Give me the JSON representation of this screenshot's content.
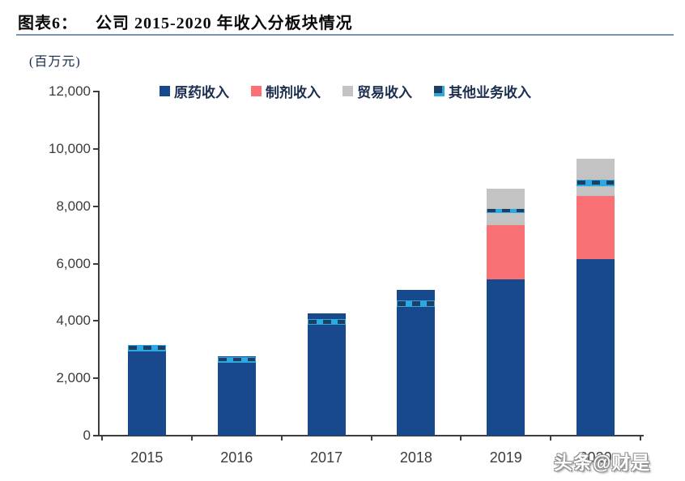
{
  "header": {
    "figure_label": "图表6：",
    "title": "公司 2015-2020 年收入分板块情况"
  },
  "watermark": "头条@财是",
  "chart_data": {
    "type": "bar",
    "stacked": true,
    "title": "公司 2015-2020 年收入分板块情况",
    "unit_label": "(百万元)",
    "xlabel": "",
    "ylabel": "百万元",
    "categories": [
      "2015",
      "2016",
      "2017",
      "2018",
      "2019",
      "2020"
    ],
    "series": [
      {
        "name": "原药收入",
        "color": "#17498c",
        "pattern": "solid",
        "values": [
          2950,
          2760,
          4250,
          5080,
          5450,
          6150
        ]
      },
      {
        "name": "制剂收入",
        "color": "#fa7175",
        "pattern": "solid",
        "values": [
          0,
          0,
          0,
          0,
          1900,
          2200
        ]
      },
      {
        "name": "贸易收入",
        "color": "#c3c3c3",
        "pattern": "solid",
        "values": [
          0,
          0,
          0,
          0,
          1250,
          1320
        ]
      },
      {
        "name": "其他业务收入",
        "color": "#2ba9e0",
        "pattern": "dashed",
        "values": [
          210,
          180,
          210,
          230,
          140,
          230
        ]
      }
    ],
    "ylim": [
      0,
      12000
    ],
    "ytick_step": 2000,
    "ytick_labels": [
      "0",
      "2,000",
      "4,000",
      "6,000",
      "8,000",
      "10,000",
      "12,000"
    ],
    "legend_position": "top",
    "grid": false,
    "colors": {
      "axis": "#3d3d3d",
      "title_underline": "#7d95b5",
      "other_dash": "#1d4062"
    }
  }
}
